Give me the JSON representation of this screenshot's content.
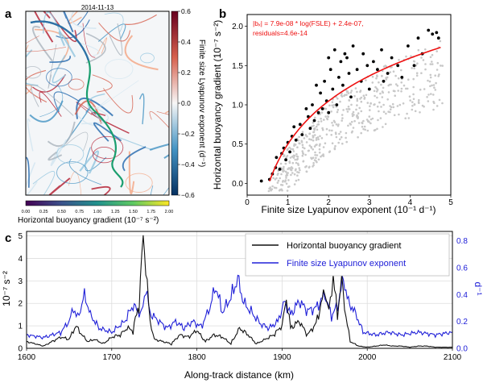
{
  "panels": {
    "a": {
      "letter": "a",
      "date": "2014-11-13",
      "colorbar_right": {
        "label": "Finite size Lyapunov exponent (d⁻¹)",
        "ticks": [
          "0.6",
          "0.4",
          "0.2",
          "0.0",
          "−0.2",
          "−0.4",
          "−0.6"
        ]
      },
      "colorbar_bottom": {
        "label": "Horizontal buoyancy gradient (10⁻⁷ s⁻²)",
        "ticks": [
          "0.00",
          "0.25",
          "0.50",
          "0.75",
          "1.00",
          "1.25",
          "1.50",
          "1.75",
          "2.00"
        ]
      }
    },
    "b": {
      "letter": "b",
      "xlabel": "Finite size Lyapunov exponent (10⁻¹ d⁻¹)",
      "ylabel": "Horizontal buoyancy gradient (10⁻⁷ s⁻²)",
      "fit_text_1": "|bₓ| = 7.9e-08 * log(FSLE) + 2.4e-07,",
      "fit_text_2": "residuals=4.6e-14",
      "xticks": [
        "0",
        "1",
        "2",
        "3",
        "4",
        "5"
      ],
      "yticks": [
        "0.0",
        "0.5",
        "1.0",
        "1.5",
        "2.0"
      ]
    },
    "c": {
      "letter": "c",
      "xlabel": "Along-track distance (km)",
      "ylabel_left": "10⁻⁷ s⁻²",
      "ylabel_right": "d⁻¹",
      "xticks": [
        "1600",
        "1700",
        "1800",
        "1900",
        "2000",
        "2100"
      ],
      "yticks_left": [
        "0",
        "1",
        "2",
        "3",
        "4",
        "5"
      ],
      "yticks_right": [
        "0.0",
        "0.2",
        "0.4",
        "0.6",
        "0.8"
      ],
      "legend": [
        "Horizontal buoyancy gradient",
        "Finite size Lyapunov exponent"
      ]
    }
  },
  "colors": {
    "black_series": "#111111",
    "blue_series": "#2020d8",
    "fit": "#ee1111",
    "scatter_bg": "#c8c8c8"
  },
  "chart_data": [
    {
      "type": "scatter",
      "panel": "b",
      "xlabel": "Finite size Lyapunov exponent (10⁻¹ d⁻¹)",
      "ylabel": "Horizontal buoyancy gradient (10⁻⁷ s⁻²)",
      "xlim": [
        0,
        5
      ],
      "ylim": [
        -0.15,
        2.15
      ],
      "points": [
        [
          0.35,
          0.03
        ],
        [
          0.55,
          0.05
        ],
        [
          0.62,
          0.12
        ],
        [
          0.7,
          0.2
        ],
        [
          0.72,
          0.33
        ],
        [
          0.8,
          0.18
        ],
        [
          0.85,
          0.38
        ],
        [
          0.9,
          0.45
        ],
        [
          1.0,
          0.52
        ],
        [
          1.05,
          0.4
        ],
        [
          1.1,
          0.6
        ],
        [
          1.2,
          0.55
        ],
        [
          1.3,
          0.75
        ],
        [
          1.35,
          0.62
        ],
        [
          1.5,
          0.85
        ],
        [
          1.55,
          0.7
        ],
        [
          1.6,
          1.0
        ],
        [
          1.65,
          0.8
        ],
        [
          1.75,
          0.9
        ],
        [
          1.8,
          1.15
        ],
        [
          1.85,
          0.95
        ],
        [
          1.9,
          1.3
        ],
        [
          1.95,
          1.05
        ],
        [
          2.0,
          1.6
        ],
        [
          2.05,
          1.45
        ],
        [
          2.1,
          1.2
        ],
        [
          2.15,
          1.7
        ],
        [
          2.2,
          1.0
        ],
        [
          2.25,
          1.35
        ],
        [
          2.3,
          1.55
        ],
        [
          2.35,
          1.25
        ],
        [
          2.45,
          1.6
        ],
        [
          2.5,
          1.4
        ],
        [
          2.55,
          1.1
        ],
        [
          2.6,
          1.75
        ],
        [
          2.7,
          1.45
        ],
        [
          2.8,
          1.3
        ],
        [
          2.85,
          1.65
        ],
        [
          2.95,
          1.5
        ],
        [
          3.0,
          1.2
        ],
        [
          3.1,
          1.55
        ],
        [
          3.2,
          1.45
        ],
        [
          3.3,
          1.7
        ],
        [
          3.45,
          1.4
        ],
        [
          3.55,
          1.6
        ],
        [
          3.7,
          1.5
        ],
        [
          3.8,
          1.35
        ],
        [
          3.95,
          1.75
        ],
        [
          4.1,
          1.5
        ],
        [
          4.2,
          1.85
        ],
        [
          4.3,
          1.65
        ],
        [
          4.45,
          1.95
        ],
        [
          4.55,
          1.9
        ],
        [
          4.65,
          1.92
        ],
        [
          4.7,
          1.85
        ],
        [
          0.95,
          0.3
        ],
        [
          1.15,
          0.72
        ],
        [
          1.45,
          0.95
        ],
        [
          1.7,
          1.25
        ],
        [
          2.0,
          0.9
        ],
        [
          2.4,
          1.65
        ],
        [
          3.35,
          1.3
        ]
      ],
      "fit": {
        "equation": "|bₓ| = 7.9e-08 * log(FSLE) + 2.4e-07",
        "residuals": "4.6e-14"
      }
    },
    {
      "type": "line",
      "panel": "c",
      "xlabel": "Along-track distance (km)",
      "xlim": [
        1600,
        2100
      ],
      "ylim_left": [
        0,
        5.2
      ],
      "ylim_right": [
        0,
        0.87
      ],
      "series": [
        {
          "name": "Horizontal buoyancy gradient",
          "axis": "left",
          "x": [
            1600,
            1610,
            1620,
            1630,
            1640,
            1650,
            1658,
            1665,
            1672,
            1680,
            1690,
            1700,
            1710,
            1718,
            1725,
            1732,
            1737,
            1740,
            1745,
            1750,
            1760,
            1770,
            1780,
            1790,
            1800,
            1810,
            1820,
            1830,
            1840,
            1850,
            1860,
            1870,
            1880,
            1890,
            1900,
            1905,
            1910,
            1920,
            1930,
            1940,
            1950,
            1955,
            1960,
            1965,
            1970,
            1975,
            1980,
            1990,
            2000,
            2010,
            2020,
            2030,
            2040,
            2050,
            2060,
            2070,
            2080,
            2090,
            2100
          ],
          "y": [
            0.3,
            0.2,
            0.1,
            0.3,
            0.5,
            0.4,
            1.0,
            0.6,
            0.3,
            0.4,
            0.2,
            0.5,
            0.6,
            0.9,
            0.8,
            2.0,
            5.0,
            3.6,
            1.2,
            0.4,
            0.3,
            0.2,
            0.6,
            0.5,
            0.8,
            0.3,
            0.6,
            0.5,
            0.2,
            0.9,
            0.6,
            0.2,
            0.4,
            0.6,
            1.0,
            2.2,
            0.9,
            1.2,
            0.6,
            1.1,
            2.6,
            1.6,
            3.2,
            1.5,
            3.1,
            1.4,
            0.3,
            0.1,
            0.05,
            0.1,
            0.15,
            0.1,
            0.1,
            0.05,
            0.1,
            0.1,
            0.05,
            0.05,
            0.05
          ]
        },
        {
          "name": "Finite size Lyapunov exponent",
          "axis": "right",
          "x": [
            1600,
            1620,
            1640,
            1650,
            1655,
            1660,
            1668,
            1675,
            1685,
            1700,
            1715,
            1725,
            1735,
            1740,
            1745,
            1752,
            1765,
            1775,
            1785,
            1795,
            1805,
            1815,
            1822,
            1830,
            1840,
            1848,
            1855,
            1865,
            1875,
            1885,
            1895,
            1903,
            1910,
            1920,
            1930,
            1940,
            1950,
            1958,
            1965,
            1972,
            1978,
            1985,
            1995,
            2010,
            2025,
            2040,
            2060,
            2080,
            2100
          ],
          "y": [
            0.1,
            0.08,
            0.12,
            0.2,
            0.3,
            0.22,
            0.4,
            0.25,
            0.15,
            0.12,
            0.2,
            0.32,
            0.25,
            0.45,
            0.26,
            0.22,
            0.15,
            0.2,
            0.15,
            0.2,
            0.16,
            0.3,
            0.46,
            0.27,
            0.38,
            0.52,
            0.34,
            0.26,
            0.18,
            0.15,
            0.2,
            0.35,
            0.25,
            0.35,
            0.28,
            0.3,
            0.4,
            0.24,
            0.32,
            0.52,
            0.34,
            0.28,
            0.12,
            0.1,
            0.12,
            0.1,
            0.12,
            0.1,
            0.12
          ]
        }
      ]
    }
  ]
}
